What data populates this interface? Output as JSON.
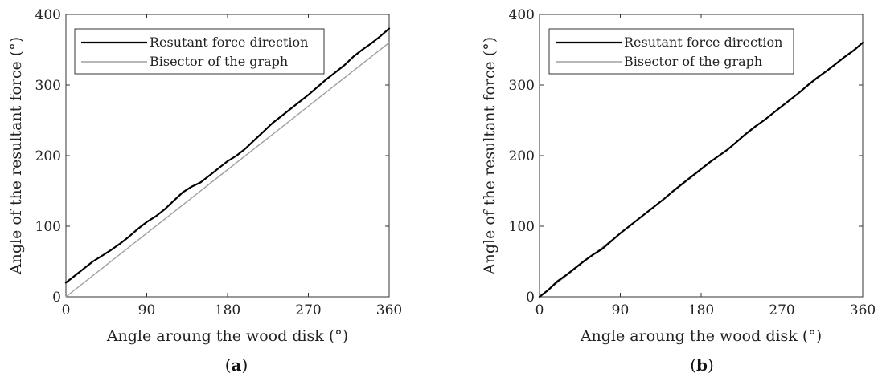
{
  "colors": {
    "series1": "#000000",
    "series2": "#a0a0a0",
    "axis": "#333333"
  },
  "chart_data": [
    {
      "type": "line",
      "panel_label": {
        "open": "(",
        "letter": "a",
        "close": ")"
      },
      "xlabel": "Angle aroung the wood disk (°)",
      "ylabel": "Angle of the resultant force (°)",
      "xlim": [
        0,
        360
      ],
      "ylim": [
        0,
        400
      ],
      "xticks": [
        0,
        90,
        180,
        270,
        360
      ],
      "yticks": [
        0,
        100,
        200,
        300,
        400
      ],
      "grid": false,
      "legend_position": "top-left",
      "series": [
        {
          "name": "Resutant force direction",
          "x": [
            0,
            10,
            20,
            30,
            40,
            50,
            60,
            70,
            80,
            90,
            100,
            110,
            120,
            130,
            140,
            150,
            160,
            170,
            180,
            190,
            200,
            210,
            220,
            230,
            240,
            250,
            260,
            270,
            280,
            290,
            300,
            310,
            320,
            330,
            340,
            350,
            360
          ],
          "y": [
            20,
            30,
            40,
            50,
            58,
            66,
            75,
            85,
            96,
            106,
            114,
            124,
            136,
            148,
            156,
            162,
            172,
            182,
            192,
            200,
            210,
            222,
            234,
            246,
            256,
            266,
            276,
            286,
            297,
            308,
            318,
            328,
            340,
            350,
            359,
            369,
            380
          ]
        },
        {
          "name": "Bisector of the graph",
          "x": [
            0,
            360
          ],
          "y": [
            0,
            360
          ]
        }
      ]
    },
    {
      "type": "line",
      "panel_label": {
        "open": "(",
        "letter": "b",
        "close": ")"
      },
      "xlabel": "Angle aroung the wood disk (°)",
      "ylabel": "Angle of the resultant force (°)",
      "xlim": [
        0,
        360
      ],
      "ylim": [
        0,
        400
      ],
      "xticks": [
        0,
        90,
        180,
        270,
        360
      ],
      "yticks": [
        0,
        100,
        200,
        300,
        400
      ],
      "grid": false,
      "legend_position": "top-left",
      "series": [
        {
          "name": "Resutant force direction",
          "x": [
            0,
            10,
            20,
            30,
            40,
            50,
            60,
            70,
            80,
            90,
            100,
            110,
            120,
            130,
            140,
            150,
            160,
            170,
            180,
            190,
            200,
            210,
            220,
            230,
            240,
            250,
            260,
            270,
            280,
            290,
            300,
            310,
            320,
            330,
            340,
            350,
            360
          ],
          "y": [
            0,
            10,
            22,
            31,
            41,
            51,
            60,
            68,
            79,
            90,
            100,
            110,
            120,
            130,
            140,
            151,
            161,
            171,
            181,
            191,
            200,
            209,
            220,
            231,
            241,
            250,
            260,
            270,
            280,
            290,
            301,
            311,
            320,
            330,
            340,
            349,
            360
          ]
        },
        {
          "name": "Bisector of the graph",
          "x": [
            0,
            360
          ],
          "y": [
            0,
            360
          ]
        }
      ]
    }
  ]
}
